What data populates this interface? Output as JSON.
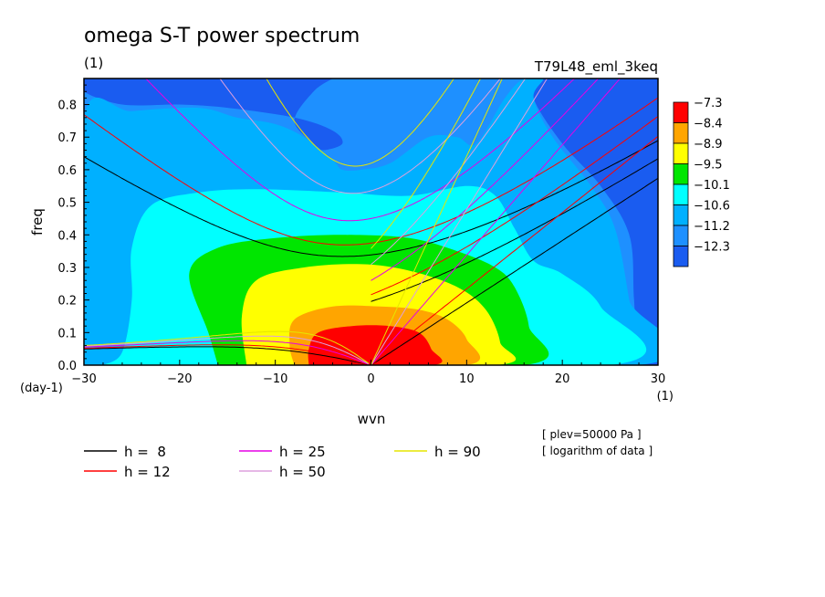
{
  "chart_data": {
    "type": "heatmap",
    "title": "omega S-T power spectrum",
    "subtitle": "(1)",
    "run_label": "T79L48_eml_3keq",
    "xlabel": "wvn",
    "ylabel": "freq",
    "x_unit": "(1)",
    "y_unit": "(day-1)",
    "xlim": [
      -30,
      30
    ],
    "ylim": [
      0,
      0.88
    ],
    "xticks": [
      -30,
      -20,
      -10,
      0,
      10,
      20,
      30
    ],
    "yticks": [
      0.0,
      0.1,
      0.2,
      0.3,
      0.4,
      0.5,
      0.6,
      0.7,
      0.8
    ],
    "colorbar": {
      "levels": [
        "-7.3",
        "-8.4",
        "-8.9",
        "-9.5",
        "-10.1",
        "-10.6",
        "-11.2",
        "-12.3"
      ],
      "colors": [
        "#ff0000",
        "#ffa500",
        "#ffff00",
        "#00e600",
        "#00ffff",
        "#00b0ff",
        "#1e90ff",
        "#1a5cf0"
      ]
    },
    "dispersion_curves": [
      {
        "name": "h =  8",
        "h": 8,
        "color": "#000000"
      },
      {
        "name": "h = 12",
        "h": 12,
        "color": "#ff0000"
      },
      {
        "name": "h = 25",
        "h": 25,
        "color": "#e600e6"
      },
      {
        "name": "h = 50",
        "h": 50,
        "color": "#dda0dd"
      },
      {
        "name": "h = 90",
        "h": 90,
        "color": "#e6e600"
      }
    ],
    "notes": [
      "[ plev=50000 Pa ]",
      "[ logarithm of data ]"
    ]
  }
}
